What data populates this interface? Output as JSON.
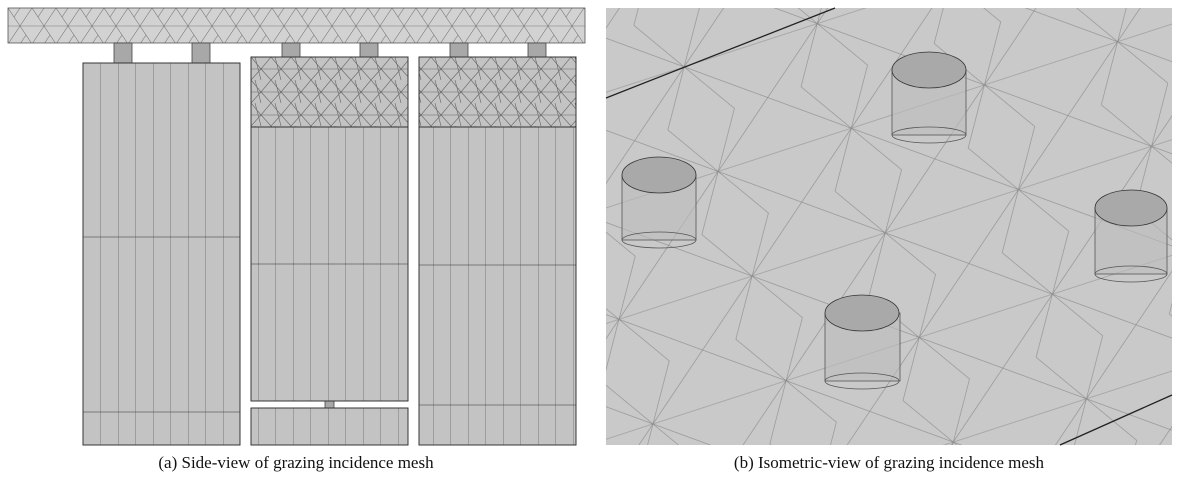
{
  "figures": [
    {
      "caption": "(a) Side-view of grazing incidence mesh"
    },
    {
      "caption": "(b) Isometric-view of grazing incidence mesh"
    }
  ]
}
